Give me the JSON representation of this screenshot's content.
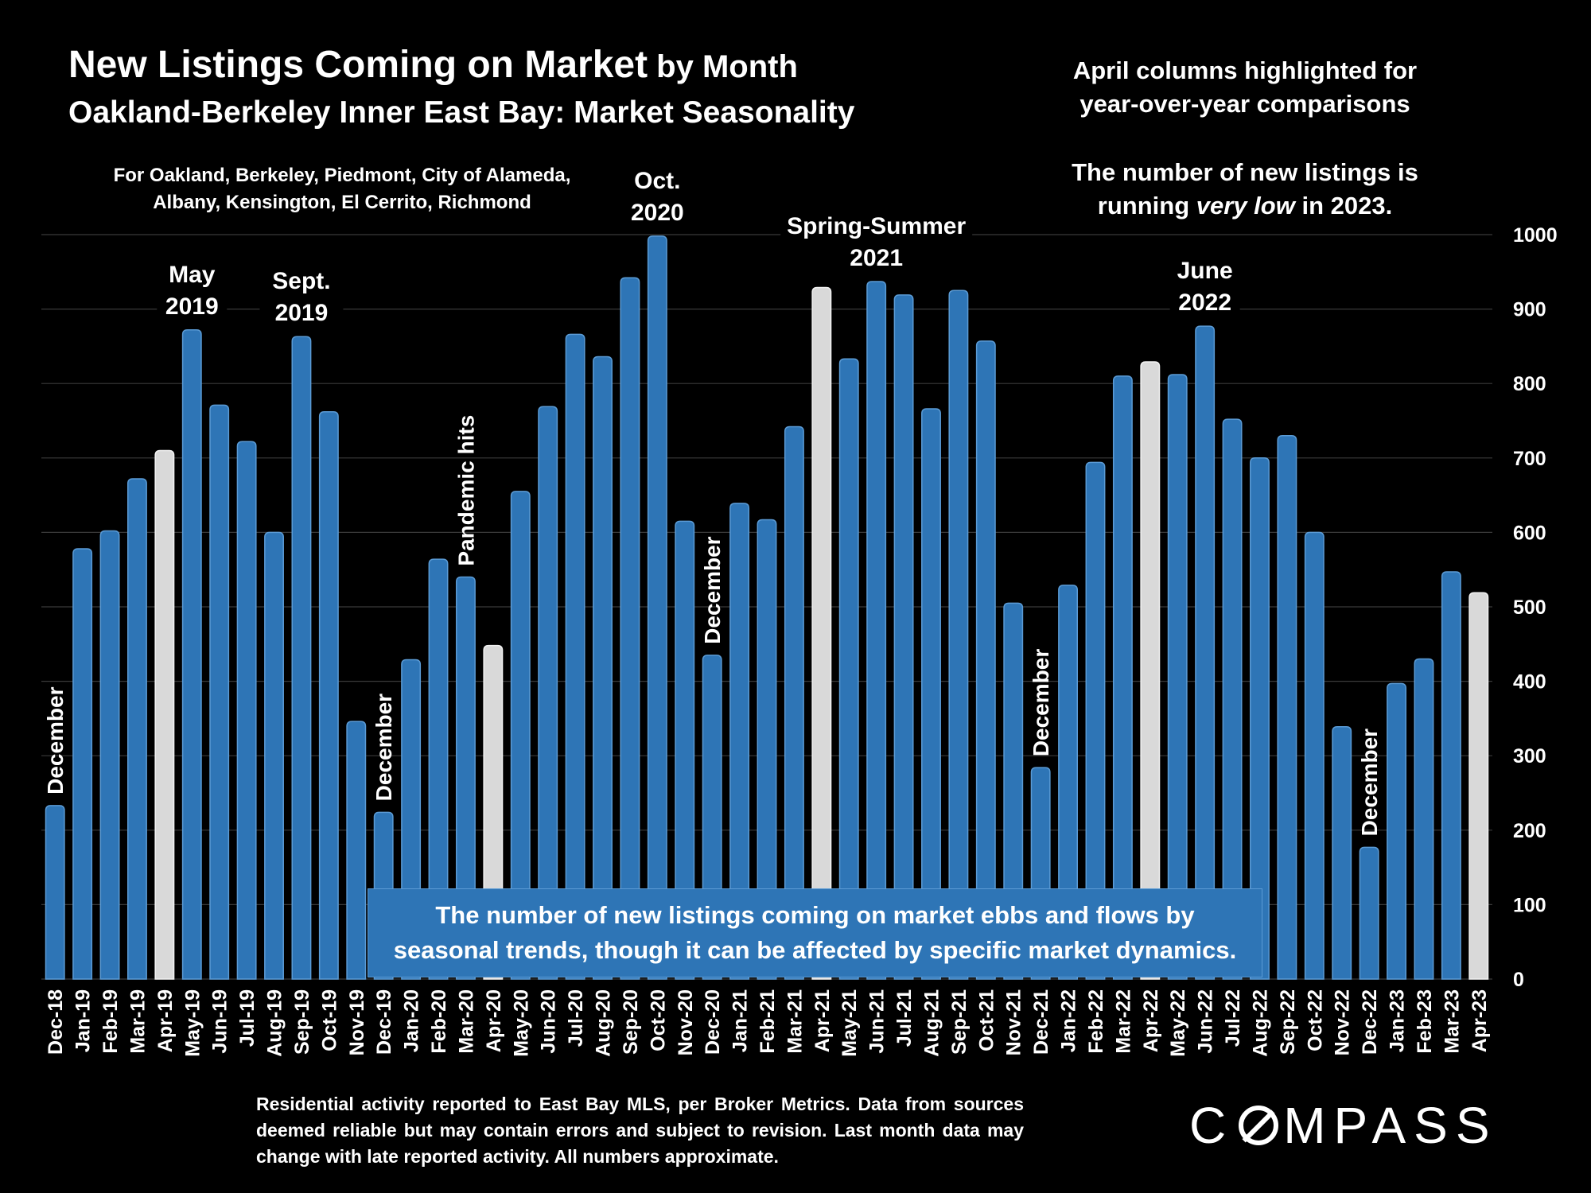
{
  "header": {
    "title_main": "New Listings Coming on Market",
    "title_suffix": " by Month",
    "subtitle": "Oakland-Berkeley Inner East Bay: Market Seasonality",
    "coverage_line1": "For Oakland, Berkeley, Piedmont, City of Alameda,",
    "coverage_line2": "Albany, Kensington, El Cerrito, Richmond"
  },
  "notes": {
    "april_line1": "April columns highlighted for",
    "april_line2": "year-over-year comparisons",
    "low_line1": "The number of new listings is",
    "low_line2_pre": "running ",
    "low_line2_em": "very low",
    "low_line2_post": " in 2023."
  },
  "callout": {
    "line1": "The number of new listings coming on market ebbs and flows by",
    "line2": "seasonal trends, though it can be affected by specific market dynamics."
  },
  "footnote": {
    "text": "Residential activity reported to East Bay MLS, per Broker Metrics. Data from sources deemed reliable but may contain errors and subject to revision. Last month data may change with late reported activity. All numbers approximate."
  },
  "logo": {
    "pre": "C",
    "post": "MPASS"
  },
  "colors": {
    "bar": "#2e75b6",
    "bar_edge": "#5b9bd5",
    "highlight": "#d9d9d9",
    "background": "#000000",
    "grid": "#3a3a3a"
  },
  "chart_data": {
    "type": "bar",
    "categories": [
      "Dec-18",
      "Jan-19",
      "Feb-19",
      "Mar-19",
      "Apr-19",
      "May-19",
      "Jun-19",
      "Jul-19",
      "Aug-19",
      "Sep-19",
      "Oct-19",
      "Nov-19",
      "Dec-19",
      "Jan-20",
      "Feb-20",
      "Mar-20",
      "Apr-20",
      "May-20",
      "Jun-20",
      "Jul-20",
      "Aug-20",
      "Sep-20",
      "Oct-20",
      "Nov-20",
      "Dec-20",
      "Jan-21",
      "Feb-21",
      "Mar-21",
      "Apr-21",
      "May-21",
      "Jun-21",
      "Jul-21",
      "Aug-21",
      "Sep-21",
      "Oct-21",
      "Nov-21",
      "Dec-21",
      "Jan-22",
      "Feb-22",
      "Mar-22",
      "Apr-22",
      "May-22",
      "Jun-22",
      "Jul-22",
      "Aug-22",
      "Sep-22",
      "Oct-22",
      "Nov-22",
      "Dec-22",
      "Jan-23",
      "Feb-23",
      "Mar-23",
      "Apr-23"
    ],
    "values": [
      233,
      578,
      602,
      672,
      710,
      872,
      771,
      722,
      600,
      863,
      762,
      346,
      224,
      429,
      564,
      540,
      448,
      655,
      769,
      866,
      836,
      942,
      998,
      615,
      435,
      639,
      617,
      742,
      929,
      833,
      937,
      919,
      766,
      925,
      857,
      505,
      284,
      529,
      694,
      810,
      829,
      812,
      877,
      752,
      700,
      730,
      600,
      339,
      177,
      397,
      430,
      547,
      519
    ],
    "highlighted": [
      "Apr-19",
      "Apr-20",
      "Apr-21",
      "Apr-22",
      "Apr-23"
    ],
    "yaxis": {
      "min": 0,
      "max": 1000,
      "step": 100,
      "ticks": [
        "0",
        "100",
        "200",
        "300",
        "400",
        "500",
        "600",
        "700",
        "800",
        "900",
        "1000"
      ],
      "position": "right"
    },
    "grid": true,
    "annotations": [
      {
        "text": [
          "December"
        ],
        "category": "Dec-18",
        "rotated": true
      },
      {
        "text": [
          "May",
          "2019"
        ],
        "category": "May-19",
        "rotated": false
      },
      {
        "text": [
          "Sept.",
          "2019"
        ],
        "category": "Sep-19",
        "rotated": false
      },
      {
        "text": [
          "December"
        ],
        "category": "Dec-19",
        "rotated": true
      },
      {
        "text": [
          "Pandemic hits"
        ],
        "category": "Mar-20",
        "rotated": true
      },
      {
        "text": [
          "Oct.",
          "2020"
        ],
        "category": "Oct-20",
        "rotated": false
      },
      {
        "text": [
          "December"
        ],
        "category": "Dec-20",
        "rotated": true
      },
      {
        "text": [
          "Spring-Summer",
          "2021"
        ],
        "category": "Jun-21",
        "rotated": false
      },
      {
        "text": [
          "December"
        ],
        "category": "Dec-21",
        "rotated": true
      },
      {
        "text": [
          "June",
          "2022"
        ],
        "category": "Jun-22",
        "rotated": false
      },
      {
        "text": [
          "December"
        ],
        "category": "Dec-22",
        "rotated": true
      }
    ]
  }
}
